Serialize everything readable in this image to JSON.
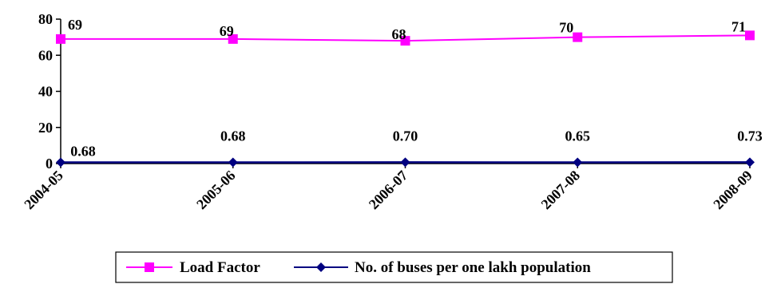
{
  "chart_data": {
    "type": "line",
    "categories": [
      "2004-05",
      "2005-06",
      "2006-07",
      "2007-08",
      "2008-09"
    ],
    "ylim": [
      0,
      80
    ],
    "yticks": [
      0,
      20,
      40,
      60,
      80
    ],
    "grid": false,
    "legend_position": "bottom",
    "series": [
      {
        "name": "Load Factor",
        "color": "#ff00ff",
        "marker": "square",
        "values": [
          69,
          69,
          68,
          70,
          71
        ],
        "labels": [
          "69",
          "69",
          "68",
          "70",
          "71"
        ]
      },
      {
        "name": "No. of buses per one lakh population",
        "color": "#000080",
        "marker": "diamond",
        "values": [
          0.68,
          0.68,
          0.7,
          0.65,
          0.73
        ],
        "labels": [
          "0.68",
          "0.68",
          "0.70",
          "0.65",
          "0.73"
        ]
      }
    ]
  }
}
